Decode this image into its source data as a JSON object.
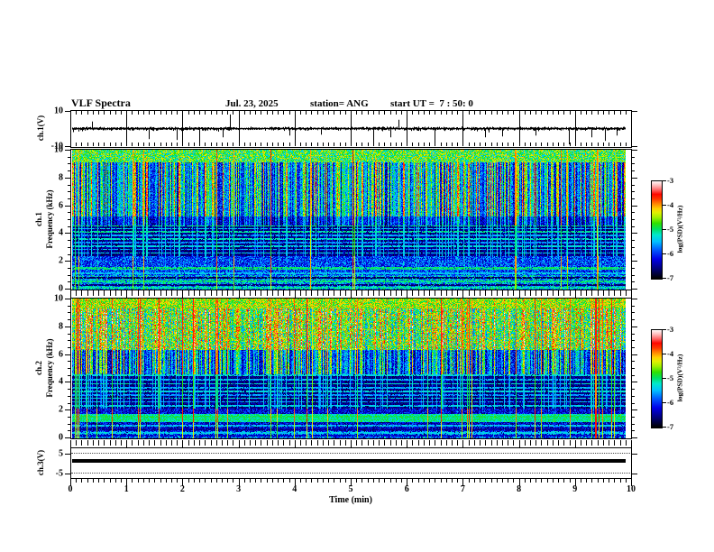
{
  "header": {
    "title": "VLF Spectra",
    "date": "Jul. 23, 2025",
    "station": "station= ANG",
    "start_ut": "start UT =  7 : 50: 0"
  },
  "axes": {
    "x": {
      "label": "Time (min)",
      "min": 0,
      "max": 10,
      "major_ticks": [
        0,
        1,
        2,
        3,
        4,
        5,
        6,
        7,
        8,
        9,
        10
      ],
      "minor_step": 0.1,
      "data_end": 9.9
    },
    "ch1v": {
      "label": "ch.1(V)",
      "min": -10,
      "max": 10,
      "ticks": [
        10,
        -10
      ]
    },
    "ch1spec": {
      "label_ch": "ch.1",
      "label_freq": "Frequency (kHz)",
      "min": 0,
      "max": 10,
      "ticks": [
        10,
        8,
        6,
        4,
        2,
        0
      ],
      "minor_step": 0.5
    },
    "ch2spec": {
      "label_ch": "ch.2",
      "label_freq": "Frequency (kHz)",
      "min": 0,
      "max": 10,
      "ticks": [
        10,
        8,
        6,
        4,
        2,
        0
      ],
      "minor_step": 0.5
    },
    "ch3v": {
      "label": "ch.3(V)",
      "min": -7.5,
      "max": 7.5,
      "ticks": [
        5,
        -5
      ]
    }
  },
  "colorbar": {
    "label": "log(PSD)(V²/Hz)",
    "ticks": [
      -3,
      -4,
      -5,
      -6,
      -7
    ],
    "min": -7,
    "max": -3
  },
  "colormap": [
    [
      0.0,
      "#000000"
    ],
    [
      0.09,
      "#000070"
    ],
    [
      0.2,
      "#0000e8"
    ],
    [
      0.3,
      "#0060ff"
    ],
    [
      0.38,
      "#00c0ff"
    ],
    [
      0.45,
      "#00e8cc"
    ],
    [
      0.51,
      "#00e060"
    ],
    [
      0.57,
      "#30e000"
    ],
    [
      0.63,
      "#a0f000"
    ],
    [
      0.68,
      "#e0f000"
    ],
    [
      0.72,
      "#ffd000"
    ],
    [
      0.77,
      "#ff8800"
    ],
    [
      0.82,
      "#ff3800"
    ],
    [
      0.87,
      "#ff0800"
    ],
    [
      0.92,
      "#ff7070"
    ],
    [
      0.96,
      "#ffb8b8"
    ],
    [
      1.0,
      "#fff0f0"
    ]
  ],
  "chart_data": [
    {
      "id": "ch1_waveform",
      "type": "line",
      "title": "ch.1(V) time series",
      "x_range": [
        0,
        9.9
      ],
      "y_range": [
        -10,
        10
      ],
      "baseline_v": 0,
      "noise_std_v": 0.7,
      "seed": 999,
      "spikes": [
        {
          "t": 0.35,
          "v": 4
        },
        {
          "t": 1.37,
          "v": -6
        },
        {
          "t": 1.87,
          "v": -6.5
        },
        {
          "t": 2.28,
          "v": -9
        },
        {
          "t": 2.7,
          "v": -5
        },
        {
          "t": 2.83,
          "v": 8
        },
        {
          "t": 3.9,
          "v": -4
        },
        {
          "t": 4.45,
          "v": -3.5
        },
        {
          "t": 5.4,
          "v": -9
        },
        {
          "t": 5.7,
          "v": -5
        },
        {
          "t": 5.85,
          "v": 5
        },
        {
          "t": 6.5,
          "v": -9.5
        },
        {
          "t": 7.0,
          "v": 5
        },
        {
          "t": 7.4,
          "v": -5
        },
        {
          "t": 7.7,
          "v": -4.5
        },
        {
          "t": 8.3,
          "v": -4
        },
        {
          "t": 8.9,
          "v": -9
        },
        {
          "t": 9.3,
          "v": -5
        },
        {
          "t": 9.55,
          "v": -7
        },
        {
          "t": 9.75,
          "v": -4
        }
      ]
    },
    {
      "id": "ch1_spectrogram",
      "type": "heatmap",
      "title": "ch.1 spectrogram",
      "xlabel": "Time (min)",
      "ylabel": "Frequency (kHz)",
      "zlabel": "log(PSD)(V²/Hz)",
      "x_range": [
        0,
        9.9
      ],
      "y_range": [
        0,
        10
      ],
      "z_range": [
        -7,
        -3
      ],
      "seed": 1234,
      "bright_density": 0.3,
      "red_density": 0.012,
      "bands": [
        {
          "f": [
            9.15,
            10.01
          ],
          "mode": "speckle",
          "base": -4.8,
          "noise": 0.7
        },
        {
          "f": [
            5.2,
            9.15
          ],
          "mode": "streak",
          "base": -6.35,
          "noise": 0.5,
          "gain": 2.6
        },
        {
          "f": [
            4.6,
            5.2
          ],
          "mode": "streak",
          "base": -6.6,
          "noise": 0.4,
          "gain": 1.6
        },
        {
          "f": [
            2.4,
            4.6
          ],
          "mode": "dark",
          "base": -6.85,
          "noise": 0.3,
          "gain": 0.8
        },
        {
          "f": [
            1.0,
            2.4
          ],
          "mode": "speckle",
          "base": -5.95,
          "noise": 0.55
        },
        {
          "f": [
            0.0,
            1.0
          ],
          "mode": "speckle",
          "base": -5.6,
          "noise": 0.7
        }
      ],
      "hlines": [
        {
          "f": 4.55,
          "v": -5.0,
          "w": 0.05
        },
        {
          "f": 4.35,
          "v": -5.4,
          "w": 0.05
        },
        {
          "f": 4.1,
          "v": -5.1,
          "w": 0.06
        },
        {
          "f": 3.85,
          "v": -5.5,
          "w": 0.05
        },
        {
          "f": 3.6,
          "v": -5.2,
          "w": 0.05
        },
        {
          "f": 3.35,
          "v": -5.6,
          "w": 0.05
        },
        {
          "f": 3.1,
          "v": -5.3,
          "w": 0.05
        },
        {
          "f": 2.85,
          "v": -5.5,
          "w": 0.05
        },
        {
          "f": 2.6,
          "v": -5.3,
          "w": 0.05
        },
        {
          "f": 1.5,
          "v": -5.0,
          "w": 0.08
        },
        {
          "f": 1.15,
          "v": -5.4,
          "w": 0.05
        },
        {
          "f": 0.8,
          "v": -6.7,
          "w": 0.07
        },
        {
          "f": 0.55,
          "v": -5.0,
          "w": 0.08
        },
        {
          "f": 0.3,
          "v": -6.6,
          "w": 0.06
        },
        {
          "f": 0.12,
          "v": -5.1,
          "w": 0.07
        }
      ],
      "vstreaks": [
        {
          "t": 0.05,
          "v": -4.6,
          "w": 1
        },
        {
          "t": 4.26,
          "v": -4.0,
          "w": 1
        },
        {
          "t": 5.06,
          "v": -4.3,
          "w": 1
        },
        {
          "t": 9.4,
          "v": -3.9,
          "w": 1.5
        }
      ]
    },
    {
      "id": "ch2_spectrogram",
      "type": "heatmap",
      "title": "ch.2 spectrogram",
      "xlabel": "Time (min)",
      "ylabel": "Frequency (kHz)",
      "zlabel": "log(PSD)(V²/Hz)",
      "x_range": [
        0,
        9.9
      ],
      "y_range": [
        0,
        10
      ],
      "z_range": [
        -7,
        -3
      ],
      "seed": 5678,
      "bright_density": 0.3,
      "red_density": 0.05,
      "bands": [
        {
          "f": [
            9.3,
            10.01
          ],
          "mode": "speckle",
          "base": -4.5,
          "noise": 0.6
        },
        {
          "f": [
            6.3,
            9.3
          ],
          "mode": "streak",
          "base": -5.25,
          "noise": 0.8,
          "gain": 1.7
        },
        {
          "f": [
            4.6,
            6.3
          ],
          "mode": "streak",
          "base": -6.45,
          "noise": 0.5,
          "gain": 2.3
        },
        {
          "f": [
            2.1,
            4.6
          ],
          "mode": "dark",
          "base": -6.85,
          "noise": 0.3,
          "gain": 0.8
        },
        {
          "f": [
            1.7,
            2.1
          ],
          "mode": "speckle",
          "base": -6.25,
          "noise": 0.5
        },
        {
          "f": [
            1.15,
            1.7
          ],
          "mode": "speckle",
          "base": -5.15,
          "noise": 0.35
        },
        {
          "f": [
            0.5,
            1.15
          ],
          "mode": "speckle",
          "base": -6.3,
          "noise": 0.5
        },
        {
          "f": [
            0.0,
            0.5
          ],
          "mode": "speckle",
          "base": -5.9,
          "noise": 0.8
        }
      ],
      "hlines": [
        {
          "f": 4.5,
          "v": -5.3,
          "w": 0.05
        },
        {
          "f": 4.2,
          "v": -5.5,
          "w": 0.05
        },
        {
          "f": 3.9,
          "v": -5.2,
          "w": 0.05
        },
        {
          "f": 3.6,
          "v": -5.5,
          "w": 0.05
        },
        {
          "f": 3.35,
          "v": -5.3,
          "w": 0.05
        },
        {
          "f": 3.1,
          "v": -5.6,
          "w": 0.05
        },
        {
          "f": 2.85,
          "v": -5.3,
          "w": 0.05
        },
        {
          "f": 2.6,
          "v": -5.5,
          "w": 0.05
        },
        {
          "f": 2.3,
          "v": -5.4,
          "w": 0.05
        },
        {
          "f": 1.55,
          "v": -4.9,
          "w": 0.06
        },
        {
          "f": 1.32,
          "v": -5.0,
          "w": 0.05
        },
        {
          "f": 0.85,
          "v": -5.4,
          "w": 0.06
        },
        {
          "f": 0.6,
          "v": -6.5,
          "w": 0.06
        },
        {
          "f": 0.35,
          "v": -5.4,
          "w": 0.06
        },
        {
          "f": 0.15,
          "v": -6.3,
          "w": 0.06
        }
      ],
      "vstreaks": [
        {
          "t": 0.05,
          "v": -4.5,
          "w": 1
        },
        {
          "t": 4.3,
          "v": -4.2,
          "w": 1
        },
        {
          "t": 7.15,
          "v": -4.0,
          "w": 1
        },
        {
          "t": 9.38,
          "v": -3.6,
          "w": 2
        },
        {
          "t": 9.7,
          "v": -4.3,
          "w": 1
        }
      ]
    },
    {
      "id": "ch3_level",
      "type": "line",
      "title": "ch.3(V) time series",
      "x_range": [
        0,
        9.9
      ],
      "y_range": [
        -7.5,
        7.5
      ],
      "value_v": 0.8,
      "line_thickness_v": 1.8
    }
  ]
}
